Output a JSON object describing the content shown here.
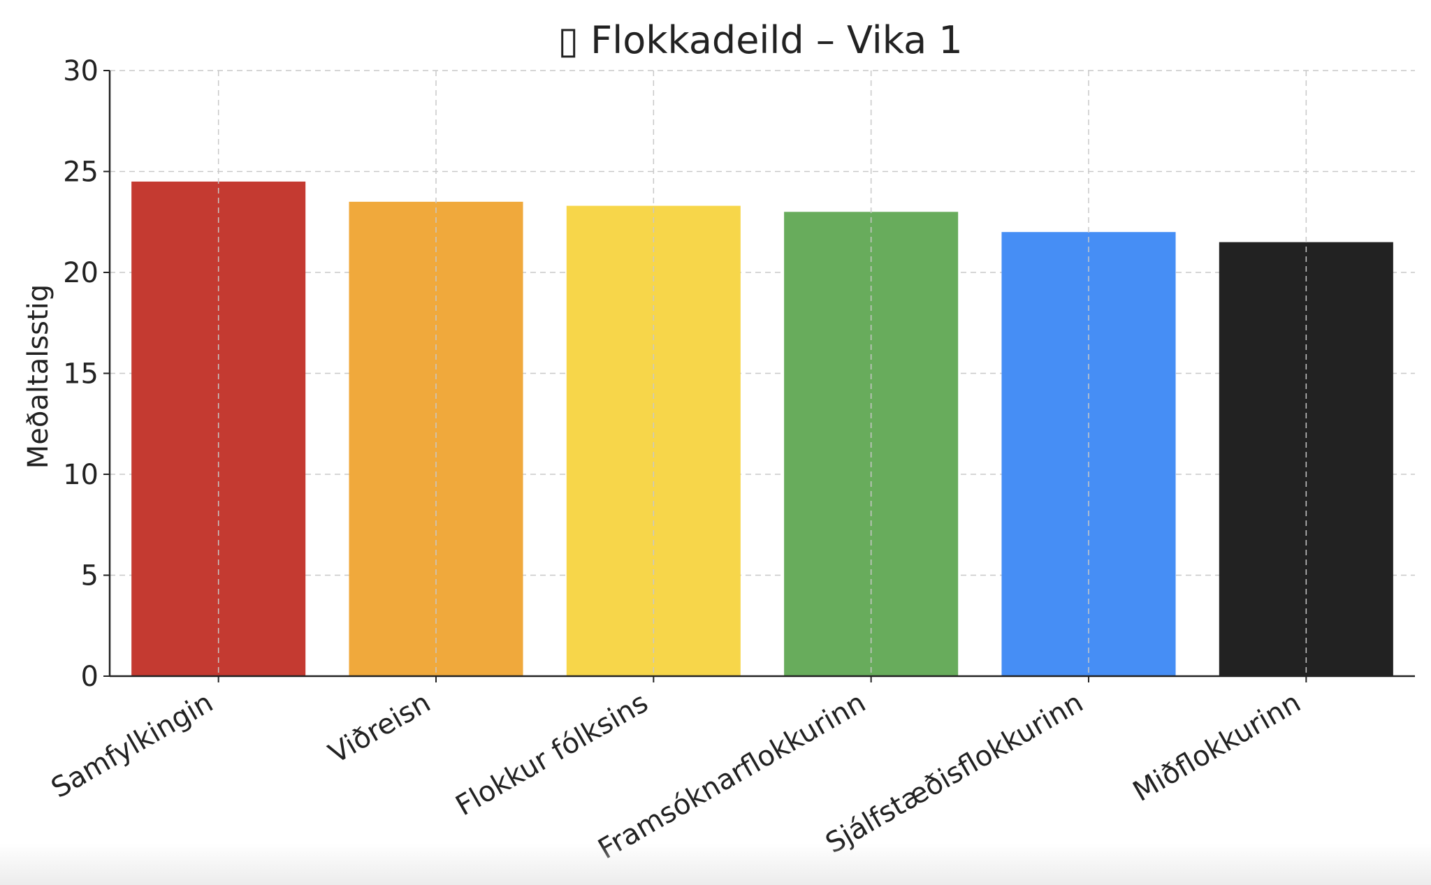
{
  "chart_data": {
    "type": "bar",
    "title": "▯ Flokkadeild – Vika 1",
    "xlabel": "",
    "ylabel": "Meðaltalsstig",
    "categories": [
      "Samfylkingin",
      "Viðreisn",
      "Flokkur fólksins",
      "Framsóknarflokkurinn",
      "Sjálfstæðisflokkurinn",
      "Miðflokkurinn"
    ],
    "values": [
      24.5,
      23.5,
      23.3,
      23.0,
      22.0,
      21.5
    ],
    "colors": [
      "#c43a31",
      "#f0a93c",
      "#f7d64a",
      "#68ac5c",
      "#468ef5",
      "#222222"
    ],
    "ylim": [
      0,
      30
    ],
    "yticks": [
      "0",
      "5",
      "10",
      "15",
      "20",
      "25",
      "30"
    ],
    "grid": true,
    "legend": "none"
  }
}
